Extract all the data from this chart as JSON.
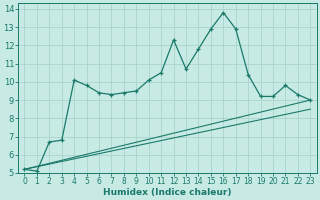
{
  "xlabel": "Humidex (Indice chaleur)",
  "x_ticks": [
    0,
    1,
    2,
    3,
    4,
    5,
    6,
    7,
    8,
    9,
    10,
    11,
    12,
    13,
    14,
    15,
    16,
    17,
    18,
    19,
    20,
    21,
    22,
    23
  ],
  "xlim": [
    -0.5,
    23.5
  ],
  "ylim": [
    5,
    14.3
  ],
  "y_ticks": [
    5,
    6,
    7,
    8,
    9,
    10,
    11,
    12,
    13,
    14
  ],
  "bg_color": "#c8eae4",
  "grid_color": "#aad4cc",
  "line_color": "#1a7a6a",
  "series_main_x": [
    0,
    1,
    2,
    3,
    4,
    5,
    6,
    7,
    8,
    9,
    10,
    11,
    12,
    13,
    14,
    15,
    16,
    17,
    18,
    19,
    20,
    21,
    22,
    23
  ],
  "series_main_y": [
    5.2,
    5.1,
    6.7,
    6.8,
    10.1,
    9.8,
    9.4,
    9.3,
    9.4,
    9.5,
    10.1,
    10.5,
    12.3,
    10.7,
    11.8,
    12.9,
    13.8,
    12.9,
    10.4,
    9.2,
    9.2,
    9.8,
    9.3,
    9.0
  ],
  "trend1_x": [
    0,
    23
  ],
  "trend1_y": [
    5.2,
    9.0
  ],
  "trend2_x": [
    0,
    23
  ],
  "trend2_y": [
    5.2,
    8.5
  ],
  "tick_fontsize": 5.5,
  "xlabel_fontsize": 6.5
}
